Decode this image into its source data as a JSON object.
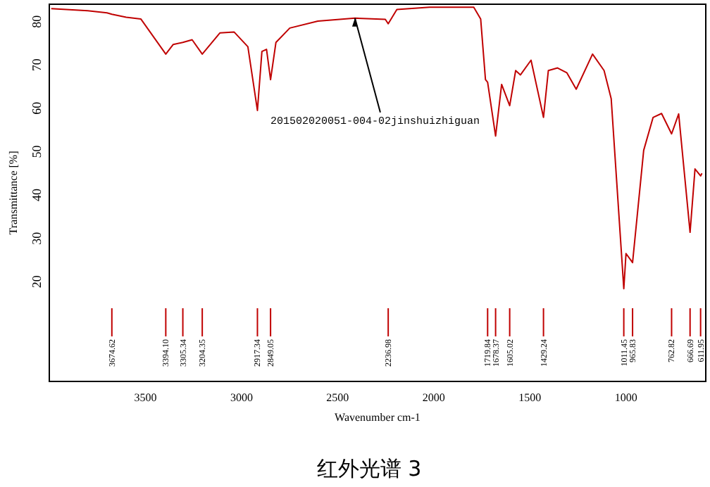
{
  "chart_data": {
    "type": "line",
    "xlabel": "Wavenumber cm-1",
    "ylabel": "Transmittance [%]",
    "xlim": [
      4000,
      585
    ],
    "ylim": [
      -3,
      84
    ],
    "xticks": [
      3500,
      3000,
      2500,
      2000,
      1500,
      1000
    ],
    "yticks": [
      20,
      30,
      40,
      50,
      60,
      70,
      80
    ],
    "x": [
      3990,
      3800,
      3700,
      3674.62,
      3600,
      3524,
      3394.1,
      3356,
      3305.34,
      3257,
      3204.35,
      3112,
      3039,
      2967,
      2917.34,
      2894,
      2870,
      2849.05,
      2821,
      2749,
      2603,
      2410,
      2252,
      2236.98,
      2192,
      2022,
      1792,
      1756,
      1731,
      1719.84,
      1678.37,
      1647,
      1605.02,
      1574,
      1549,
      1494,
      1429.24,
      1404,
      1356,
      1308,
      1259,
      1174,
      1114,
      1077,
      1011.45,
      1000,
      965.83,
      908,
      859,
      815,
      762.82,
      726,
      666.69,
      641,
      611.95,
      605
    ],
    "series": [
      {
        "color": "#c00000",
        "values": [
          83,
          82.5,
          82,
          81.7,
          81,
          80.6,
          72.5,
          74.7,
          75.2,
          75.8,
          72.5,
          77.4,
          77.6,
          74.2,
          59.5,
          73.1,
          73.6,
          66.6,
          75.2,
          78.5,
          80.1,
          80.8,
          80.5,
          79.5,
          82.8,
          83.3,
          83.3,
          80.6,
          66.6,
          66,
          53.6,
          65.5,
          60.6,
          68.7,
          67.7,
          71.1,
          57.9,
          68.7,
          69.3,
          68.2,
          64.4,
          72.5,
          68.7,
          62.2,
          18.4,
          26.5,
          24.4,
          50.3,
          57.9,
          58.8,
          54.1,
          58.7,
          31.4,
          46,
          44.4,
          45
        ]
      }
    ],
    "annotations": [
      {
        "text": "201502020051-004-02jinshuizhiguan",
        "x": 2410,
        "y": 80.8
      },
      "红外光谱 3"
    ],
    "ref_lines": [
      {
        "axis": "x",
        "value": 3674.62,
        "label": "3674.62"
      },
      {
        "axis": "x",
        "value": 3394.1,
        "label": "3394.10"
      },
      {
        "axis": "x",
        "value": 3305.34,
        "label": "3305.34"
      },
      {
        "axis": "x",
        "value": 3204.35,
        "label": "3204.35"
      },
      {
        "axis": "x",
        "value": 2917.34,
        "label": "2917.34"
      },
      {
        "axis": "x",
        "value": 2849.05,
        "label": "2849.05"
      },
      {
        "axis": "x",
        "value": 2236.98,
        "label": "2236.98"
      },
      {
        "axis": "x",
        "value": 1719.84,
        "label": "1719.84"
      },
      {
        "axis": "x",
        "value": 1678.37,
        "label": "1678.37"
      },
      {
        "axis": "x",
        "value": 1605.02,
        "label": "1605.02"
      },
      {
        "axis": "x",
        "value": 1429.24,
        "label": "1429.24"
      },
      {
        "axis": "x",
        "value": 1011.45,
        "label": "1011.45"
      },
      {
        "axis": "x",
        "value": 965.83,
        "label": "965.83"
      },
      {
        "axis": "x",
        "value": 762.82,
        "label": "762.82"
      },
      {
        "axis": "x",
        "value": 666.69,
        "label": "666.69"
      },
      {
        "axis": "x",
        "value": 611.95,
        "label": "611.95"
      }
    ],
    "grid": false
  }
}
